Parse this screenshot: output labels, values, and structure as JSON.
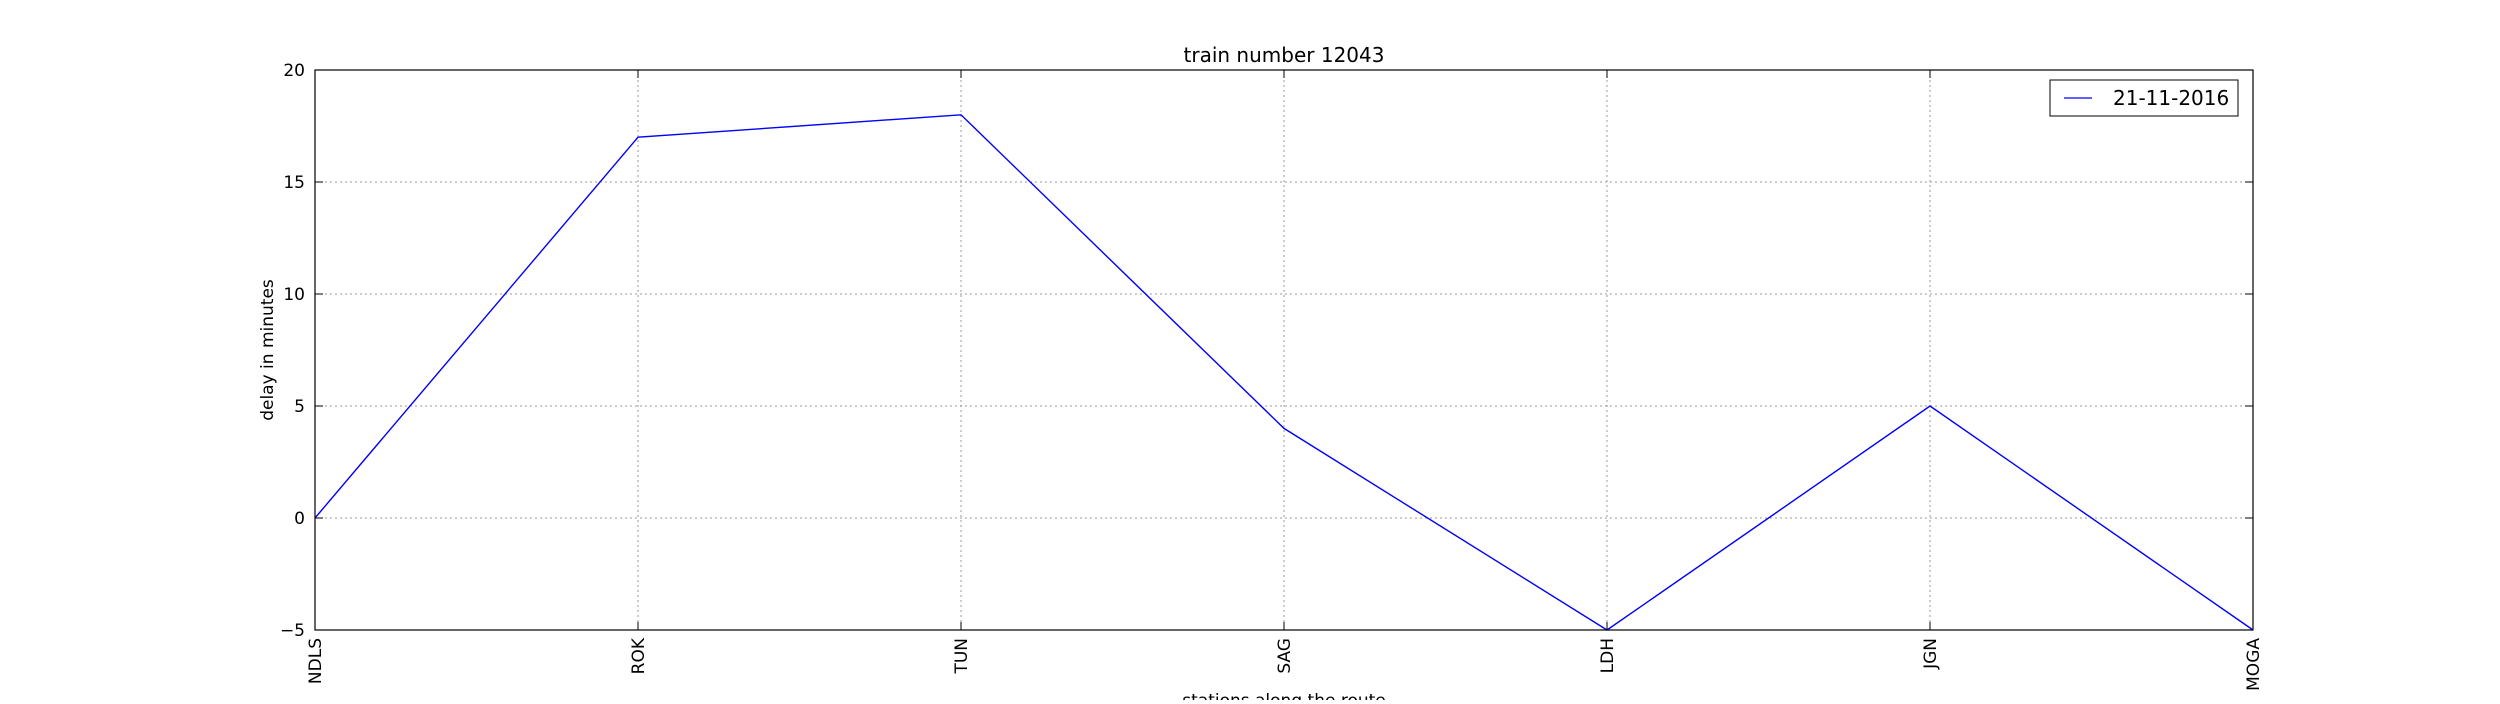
{
  "chart_data": {
    "type": "line",
    "title": "train number 12043",
    "xlabel": "stations along the route",
    "ylabel": "delay in minutes",
    "categories": [
      "NDLS",
      "ROK",
      "TUN",
      "SAG",
      "LDH",
      "JGN",
      "MOGA"
    ],
    "series": [
      {
        "name": "21-11-2016",
        "color": "#0000ff",
        "values": [
          0,
          17,
          18,
          4,
          -5,
          5,
          -5
        ]
      }
    ],
    "ylim": [
      -5,
      20
    ],
    "yticks": [
      -5,
      0,
      5,
      10,
      15,
      20
    ],
    "ytick_labels": [
      "−5",
      "0",
      "5",
      "10",
      "15",
      "20"
    ],
    "grid": true,
    "legend_position": "top-right"
  }
}
